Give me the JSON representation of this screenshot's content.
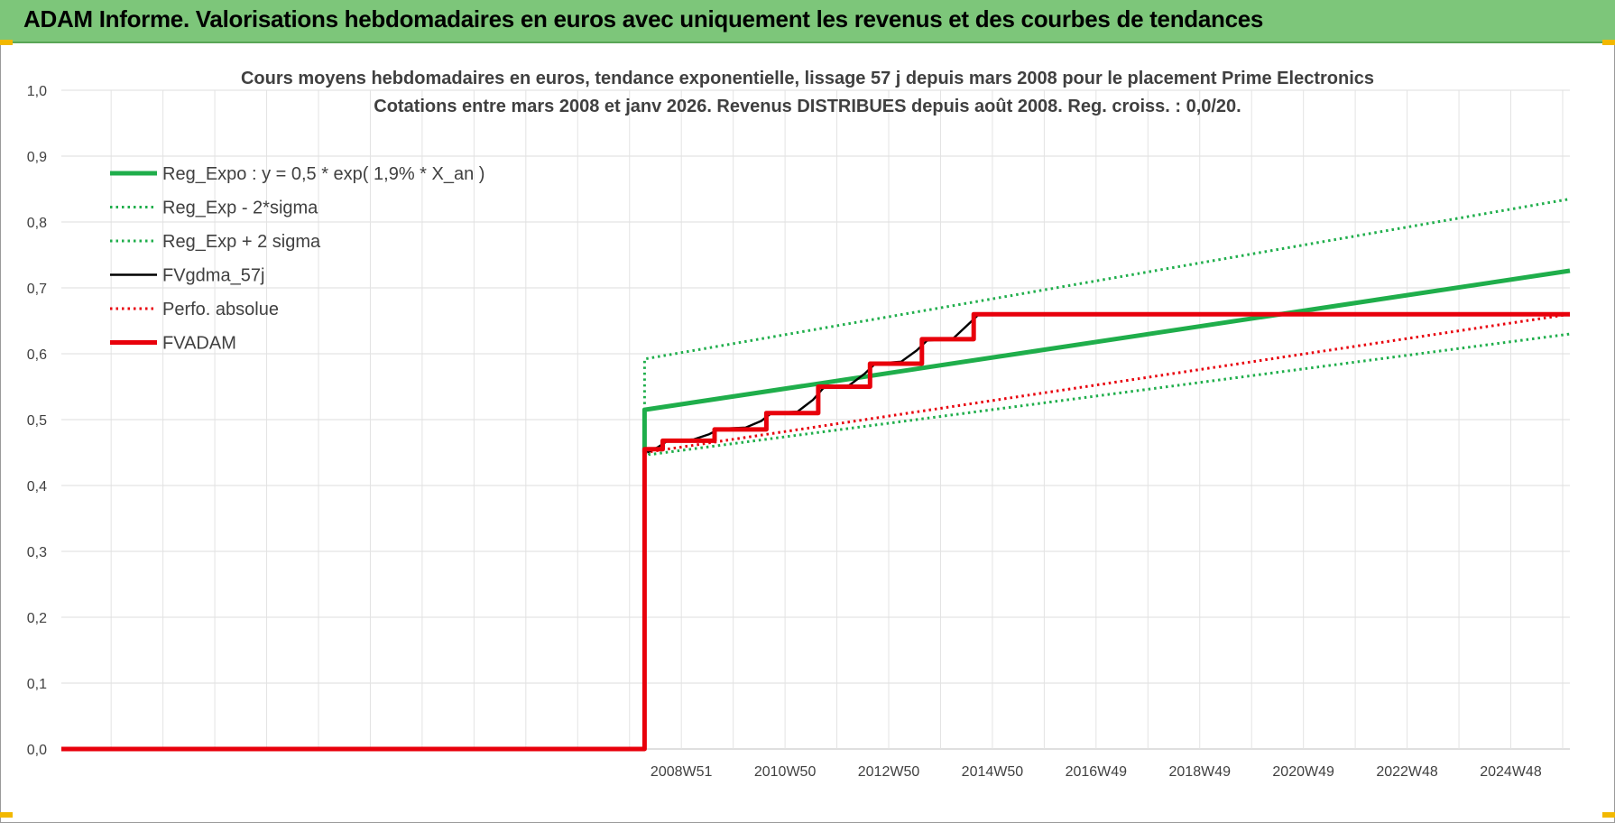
{
  "banner": {
    "title": "ADAM Informe. Valorisations hebdomadaires en euros avec uniquement les revenus et des courbes de tendances"
  },
  "colors": {
    "banner_bg": "#7dc67a",
    "green": "#1fae4b",
    "red": "#e8000b",
    "black": "#000000",
    "grid": "#dcdcdc"
  },
  "chart_data": {
    "type": "line",
    "title": "Cours moyens hebdomadaires en euros, tendance exponentielle, lissage 57 j depuis mars 2008 pour le placement Prime Electronics",
    "subtitle": "Cotations entre mars 2008 et janv 2026. Revenus DISTRIBUES depuis août 2008. Reg. croiss. : 0,0/20.",
    "xlabel": "",
    "ylabel": "",
    "ylim": [
      0,
      1.0
    ],
    "xlim": [
      1997.0,
      2026.1
    ],
    "y_ticks": [
      "0,0",
      "0,1",
      "0,2",
      "0,3",
      "0,4",
      "0,5",
      "0,6",
      "0,7",
      "0,8",
      "0,9",
      "1,0"
    ],
    "x_ticks": [
      {
        "label": "2008W51",
        "x": 2008.96
      },
      {
        "label": "2010W50",
        "x": 2010.96
      },
      {
        "label": "2012W50",
        "x": 2012.96
      },
      {
        "label": "2014W50",
        "x": 2014.96
      },
      {
        "label": "2016W49",
        "x": 2016.96
      },
      {
        "label": "2018W49",
        "x": 2018.96
      },
      {
        "label": "2020W49",
        "x": 2020.96
      },
      {
        "label": "2022W48",
        "x": 2022.96
      },
      {
        "label": "2024W48",
        "x": 2024.96
      }
    ],
    "grid": true,
    "legend_position": "top-left",
    "series": [
      {
        "name": "Reg_Expo : y = 0,5 * exp( 1,9% *  X_an )",
        "color": "#1fae4b",
        "style": "solid",
        "width": "thick",
        "x": [
          2008.25,
          2008.25,
          2026.1
        ],
        "y": [
          0.45,
          0.515,
          0.726
        ]
      },
      {
        "name": "Reg_Exp - 2*sigma",
        "color": "#1fae4b",
        "style": "dotted",
        "width": "thin",
        "x": [
          2008.25,
          2008.35,
          2026.1
        ],
        "y": [
          0.455,
          0.447,
          0.63
        ]
      },
      {
        "name": "Reg_Exp + 2 sigma",
        "color": "#1fae4b",
        "style": "dotted",
        "width": "thin",
        "x": [
          2008.25,
          2008.25,
          2026.1
        ],
        "y": [
          0.47,
          0.592,
          0.835
        ]
      },
      {
        "name": "FVgdma_57j",
        "color": "#000000",
        "style": "solid",
        "width": "thin",
        "x": [
          2008.3,
          2008.5,
          2008.7,
          2009.2,
          2009.5,
          2009.7,
          2010.2,
          2010.5,
          2010.7,
          2011.2,
          2011.5,
          2011.7,
          2012.2,
          2012.5,
          2012.7,
          2013.2,
          2013.5,
          2013.7,
          2014.2,
          2014.5,
          2014.7,
          2026.1
        ],
        "y": [
          0.45,
          0.458,
          0.468,
          0.47,
          0.478,
          0.486,
          0.488,
          0.498,
          0.51,
          0.512,
          0.53,
          0.548,
          0.552,
          0.57,
          0.585,
          0.588,
          0.605,
          0.62,
          0.623,
          0.645,
          0.66,
          0.66
        ]
      },
      {
        "name": "Perfo. absolue",
        "color": "#e8000b",
        "style": "dotted",
        "width": "thin",
        "x": [
          1997.0,
          2008.25,
          2008.25,
          2026.1
        ],
        "y": [
          0.0,
          0.0,
          0.45,
          0.66
        ]
      },
      {
        "name": "FVADAM",
        "color": "#e8000b",
        "style": "solid",
        "width": "thick",
        "x": [
          1997.0,
          2008.25,
          2008.25,
          2008.6,
          2008.6,
          2009.6,
          2009.6,
          2010.6,
          2010.6,
          2011.6,
          2011.6,
          2012.6,
          2012.6,
          2013.6,
          2013.6,
          2014.6,
          2014.6,
          2026.1
        ],
        "y": [
          0.0,
          0.0,
          0.455,
          0.455,
          0.468,
          0.468,
          0.485,
          0.485,
          0.51,
          0.51,
          0.55,
          0.55,
          0.585,
          0.585,
          0.622,
          0.622,
          0.66,
          0.66
        ]
      }
    ]
  }
}
